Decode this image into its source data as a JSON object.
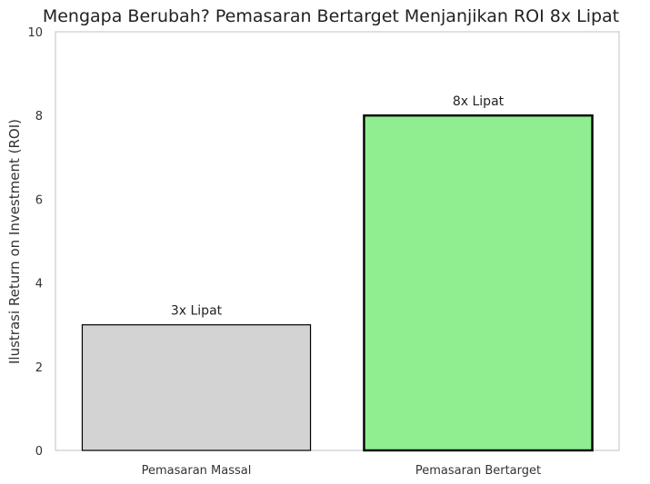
{
  "chart_data": {
    "type": "bar",
    "title": "Mengapa Berubah? Pemasaran Bertarget Menjanjikan ROI 8x Lipat",
    "xlabel": "",
    "ylabel": "Ilustrasi Return on Investment (ROI)",
    "categories": [
      "Pemasaran Massal",
      "Pemasaran Bertarget"
    ],
    "values": [
      3,
      8
    ],
    "data_labels": [
      "3x Lipat",
      "8x Lipat"
    ],
    "colors": [
      "#d3d3d3",
      "#90ee90"
    ],
    "edge_color": "#000000",
    "ylim": [
      0,
      10
    ],
    "yticks": [
      "0",
      "2",
      "4",
      "6",
      "8",
      "10"
    ],
    "grid": false,
    "legend": "none"
  }
}
